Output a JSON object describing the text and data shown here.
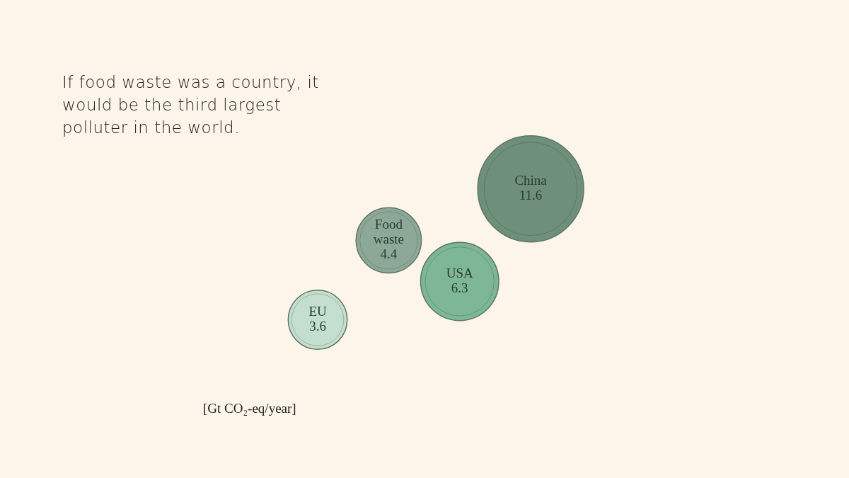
{
  "chart_data": {
    "type": "other",
    "title": "If food waste was a country, it would be the third largest polluter in the world.",
    "categories": [
      "EU",
      "Food waste",
      "USA",
      "China"
    ],
    "values": [
      3.6,
      4.4,
      6.3,
      11.6
    ],
    "colors": [
      "#c4dfcf",
      "#8ea897",
      "#7db797",
      "#6e8f79"
    ],
    "data_labels": true,
    "annotations": [
      "[Gt CO₂-eq/year]"
    ]
  }
}
